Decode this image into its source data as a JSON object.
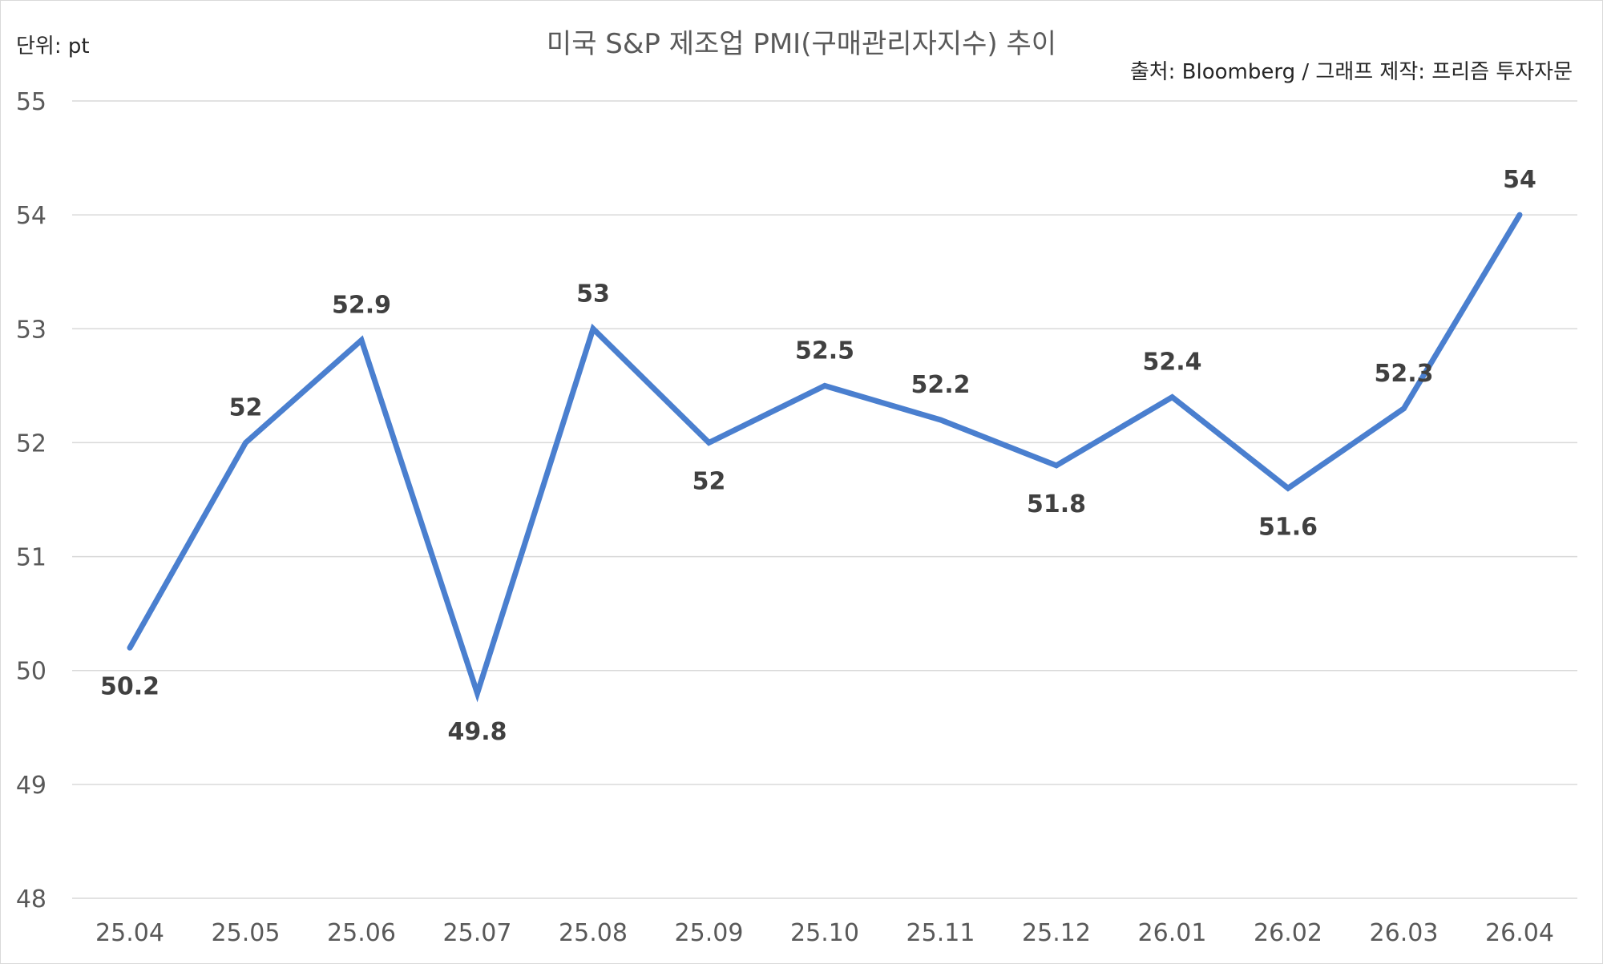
{
  "chart_data": {
    "type": "line",
    "title": "미국 S&P 제조업 PMI(구매관리자지수) 추이",
    "unit_label": "단위: pt",
    "source_label": "출처: Bloomberg / 그래프 제작: 프리즘 투자자문",
    "categories": [
      "25.04",
      "25.05",
      "25.06",
      "25.07",
      "25.08",
      "25.09",
      "25.10",
      "25.11",
      "25.12",
      "26.01",
      "26.02",
      "26.03",
      "26.04"
    ],
    "series": [
      {
        "values": [
          50.2,
          52,
          52.9,
          49.8,
          53,
          52,
          52.5,
          52.2,
          51.8,
          52.4,
          51.6,
          52.3,
          54
        ],
        "labels": [
          "50.2",
          "52",
          "52.9",
          "49.8",
          "53",
          "52",
          "52.5",
          "52.2",
          "51.8",
          "52.4",
          "51.6",
          "52.3",
          "54"
        ],
        "color": "#4a7fcf"
      }
    ],
    "ylim": [
      48,
      55
    ],
    "yticks": [
      48,
      49,
      50,
      51,
      52,
      53,
      54,
      55
    ],
    "ytick_labels": [
      "48",
      "49",
      "50",
      "51",
      "52",
      "53",
      "54",
      "55"
    ],
    "grid": true,
    "legend": "none"
  }
}
